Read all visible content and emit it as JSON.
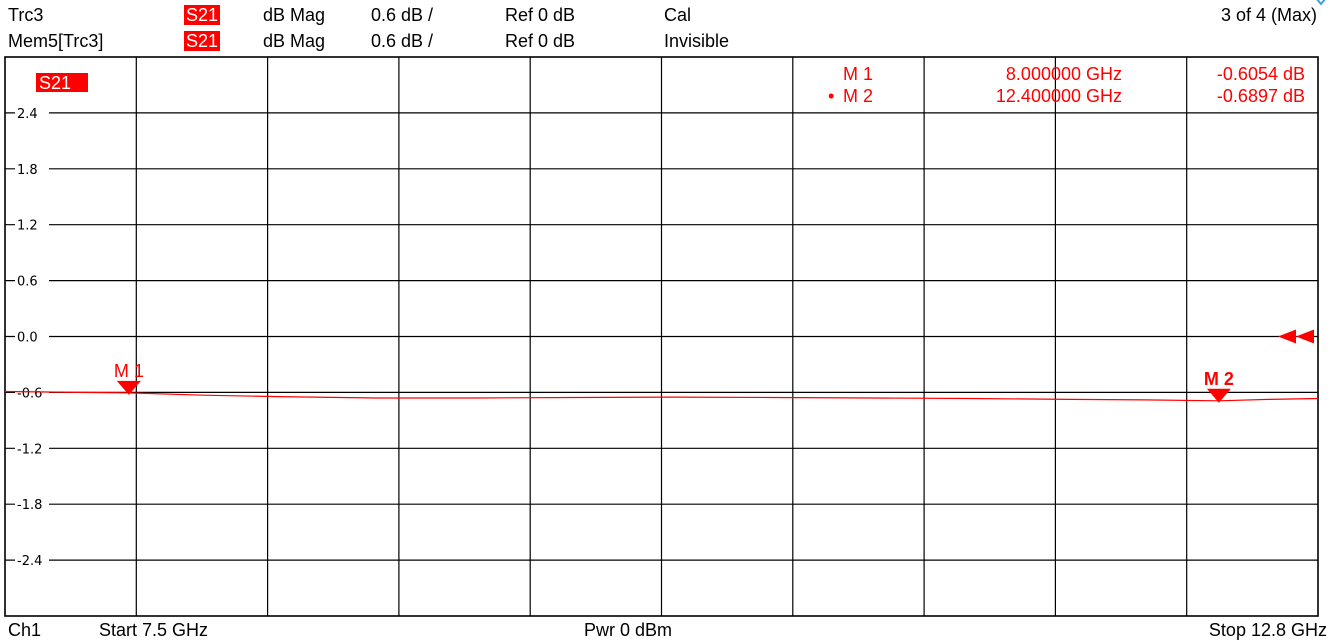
{
  "header": {
    "rows": [
      {
        "trace": "Trc3",
        "param": "S21",
        "format": "dB Mag",
        "scale": "0.6 dB /",
        "ref": "Ref 0 dB",
        "state": "Cal"
      },
      {
        "trace": "Mem5[Trc3]",
        "param": "S21",
        "format": "dB Mag",
        "scale": "0.6 dB /",
        "ref": "Ref 0 dB",
        "state": "Invisible"
      }
    ],
    "count": "3 of 4 (Max)"
  },
  "footer": {
    "channel": "Ch1",
    "start": "Start  7.5 GHz",
    "power": "Pwr  0 dBm",
    "stop": "Stop  12.8 GHz"
  },
  "chart_data": {
    "type": "line",
    "trace_label": "S21",
    "x_unit": "GHz",
    "xlim": [
      7.5,
      12.8
    ],
    "ylim": [
      -3.0,
      3.0
    ],
    "yticks": [
      2.4,
      1.8,
      1.2,
      0.6,
      0.0,
      -0.6,
      -1.2,
      -1.8,
      -2.4
    ],
    "ytick_labels": [
      "2.4",
      "1.8",
      "1.2",
      "0.6",
      "0.0",
      "-0.6",
      "-1.2",
      "-1.8",
      "-2.4"
    ],
    "grid": true,
    "ref_level": 0.0,
    "series": [
      {
        "color": "#ff0000",
        "x": [
          7.5,
          7.8,
          8.0,
          8.3,
          8.6,
          9.0,
          9.4,
          9.8,
          10.2,
          10.6,
          11.0,
          11.4,
          11.8,
          12.1,
          12.4,
          12.6,
          12.8
        ],
        "y": [
          -0.59,
          -0.6,
          -0.605,
          -0.63,
          -0.645,
          -0.66,
          -0.66,
          -0.655,
          -0.65,
          -0.655,
          -0.66,
          -0.665,
          -0.675,
          -0.68,
          -0.69,
          -0.675,
          -0.665
        ]
      }
    ],
    "markers": [
      {
        "label": "M 1",
        "x": 8.0,
        "y": -0.6054,
        "freq_text": "8.000000 GHz",
        "value_text": "-0.6054 dB",
        "active": false
      },
      {
        "label": "M 2",
        "x": 12.4,
        "y": -0.6897,
        "freq_text": "12.400000 GHz",
        "value_text": "-0.6897 dB",
        "active": true
      }
    ],
    "marker_list_bullet": "•"
  }
}
